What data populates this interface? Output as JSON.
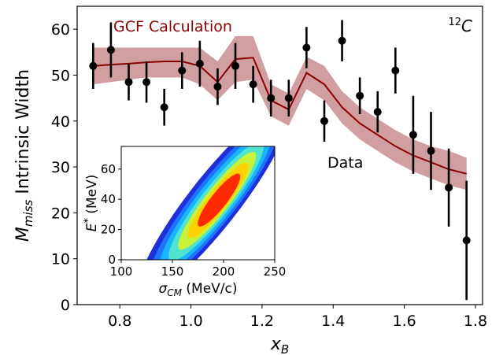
{
  "chart_data": [
    {
      "type": "line",
      "xlabel_main": "x",
      "xlabel_sub": "B",
      "ylabel_main": "M",
      "ylabel_sub": "miss",
      "ylabel_rest": " Intrinsic Width",
      "xlim": [
        0.68,
        1.82
      ],
      "ylim": [
        0,
        65
      ],
      "xticks": [
        "0.8",
        "1.0",
        "1.2",
        "1.4",
        "1.6",
        "1.8"
      ],
      "yticks": [
        "0",
        "10",
        "20",
        "30",
        "40",
        "50",
        "60"
      ],
      "nucleus_label_sup": "12",
      "nucleus_label_base": "C",
      "colors": {
        "calc_line": "#8b0000",
        "calc_band": "#c98d92",
        "data": "#000000"
      },
      "series": [
        {
          "name": "GCF Calculation",
          "style": "line-with-band",
          "x": [
            0.725,
            0.775,
            0.825,
            0.875,
            0.925,
            0.975,
            1.025,
            1.075,
            1.125,
            1.175,
            1.225,
            1.275,
            1.325,
            1.375,
            1.425,
            1.475,
            1.525,
            1.575,
            1.625,
            1.675,
            1.725,
            1.775
          ],
          "y": [
            52.0,
            52.3,
            52.5,
            52.8,
            53.0,
            53.0,
            52.0,
            48.5,
            53.5,
            53.8,
            44.5,
            42.5,
            50.5,
            48.0,
            43.0,
            39.5,
            37.0,
            34.5,
            32.5,
            31.0,
            29.5,
            28.5
          ],
          "y_upper": [
            56.0,
            56.0,
            56.0,
            56.0,
            56.0,
            56.0,
            56.0,
            53.0,
            58.5,
            58.5,
            48.0,
            46.0,
            54.0,
            52.0,
            46.5,
            43.0,
            40.5,
            38.0,
            36.0,
            34.5,
            33.5,
            32.0
          ],
          "y_lower": [
            48.0,
            48.5,
            49.0,
            49.5,
            49.5,
            49.5,
            48.0,
            44.5,
            48.5,
            49.0,
            41.0,
            39.0,
            47.0,
            44.5,
            39.5,
            36.0,
            33.5,
            31.0,
            29.0,
            27.5,
            26.0,
            25.0
          ]
        },
        {
          "name": "Data",
          "style": "points-errorbars",
          "x": [
            0.725,
            0.775,
            0.825,
            0.875,
            0.925,
            0.975,
            1.025,
            1.075,
            1.125,
            1.175,
            1.225,
            1.275,
            1.325,
            1.375,
            1.425,
            1.475,
            1.525,
            1.575,
            1.625,
            1.675,
            1.725,
            1.775
          ],
          "y": [
            52.0,
            55.5,
            48.5,
            48.5,
            43.0,
            51.0,
            52.5,
            47.5,
            52.0,
            48.0,
            45.0,
            45.0,
            56.0,
            40.0,
            57.5,
            45.5,
            42.0,
            51.0,
            37.0,
            33.5,
            25.5,
            14.0
          ],
          "err": [
            5.0,
            6.0,
            4.0,
            4.5,
            4.0,
            4.0,
            5.0,
            4.0,
            5.0,
            4.0,
            4.0,
            4.0,
            4.5,
            4.5,
            4.5,
            4.0,
            4.5,
            5.0,
            8.5,
            8.5,
            8.5,
            13.0
          ]
        }
      ]
    },
    {
      "type": "heatmap",
      "xlabel_main": "σ",
      "xlabel_sub": "CM",
      "xlabel_rest": " (MeV/c)",
      "ylabel_main": "E",
      "ylabel_sup": "*",
      "ylabel_rest": " (MeV)",
      "xlim": [
        100,
        250
      ],
      "ylim": [
        0,
        75
      ],
      "xticks": [
        "100",
        "150",
        "200",
        "250"
      ],
      "yticks": [
        "0",
        "20",
        "40",
        "60"
      ],
      "contour_colors": [
        "#1f2fd9",
        "#1e74ff",
        "#18b6ff",
        "#4fe3d0",
        "#c8f23a",
        "#ffd200",
        "#ff2a00"
      ],
      "peak": {
        "x": 190,
        "y": 38
      }
    }
  ]
}
